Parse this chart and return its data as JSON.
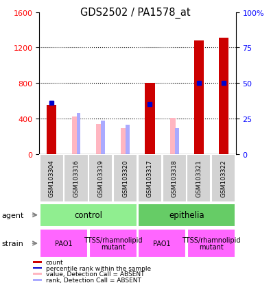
{
  "title": "GDS2502 / PA1578_at",
  "samples": [
    "GSM103304",
    "GSM103316",
    "GSM103319",
    "GSM103320",
    "GSM103317",
    "GSM103318",
    "GSM103321",
    "GSM103322"
  ],
  "count_values": [
    550,
    0,
    0,
    0,
    800,
    0,
    1280,
    1310
  ],
  "rank_values": [
    36,
    0,
    0,
    0,
    35,
    0,
    50,
    50
  ],
  "absent_value": [
    0,
    420,
    340,
    290,
    0,
    410,
    0,
    0
  ],
  "absent_rank": [
    0,
    460,
    375,
    330,
    0,
    290,
    0,
    0
  ],
  "detection_call": [
    "P",
    "A",
    "A",
    "A",
    "P",
    "A",
    "P",
    "P"
  ],
  "ylim_left": [
    0,
    1600
  ],
  "ylim_right": [
    0,
    100
  ],
  "yticks_left": [
    0,
    400,
    800,
    1200,
    1600
  ],
  "yticks_right": [
    0,
    25,
    50,
    75,
    100
  ],
  "yticklabels_right": [
    "0",
    "25",
    "50",
    "75",
    "100%"
  ],
  "agent_groups": [
    {
      "label": "control",
      "start": 0,
      "end": 4,
      "color": "#90EE90"
    },
    {
      "label": "epithelia",
      "start": 4,
      "end": 8,
      "color": "#66CC66"
    }
  ],
  "strain_groups": [
    {
      "label": "PAO1",
      "start": 0,
      "end": 2,
      "color": "#FF66FF"
    },
    {
      "label": "TTSS/rhamnolipid\nmutant",
      "start": 2,
      "end": 4,
      "color": "#FF66FF"
    },
    {
      "label": "PAO1",
      "start": 4,
      "end": 6,
      "color": "#FF66FF"
    },
    {
      "label": "TTSS/rhamnolipid\nmutant",
      "start": 6,
      "end": 8,
      "color": "#FF66FF"
    }
  ],
  "legend_items": [
    {
      "color": "#CC0000",
      "label": "count"
    },
    {
      "color": "#0000CC",
      "label": "percentile rank within the sample"
    },
    {
      "color": "#FFB6C1",
      "label": "value, Detection Call = ABSENT"
    },
    {
      "color": "#AAAAFF",
      "label": "rank, Detection Call = ABSENT"
    }
  ],
  "bar_width": 0.4,
  "background_color": "#ffffff"
}
